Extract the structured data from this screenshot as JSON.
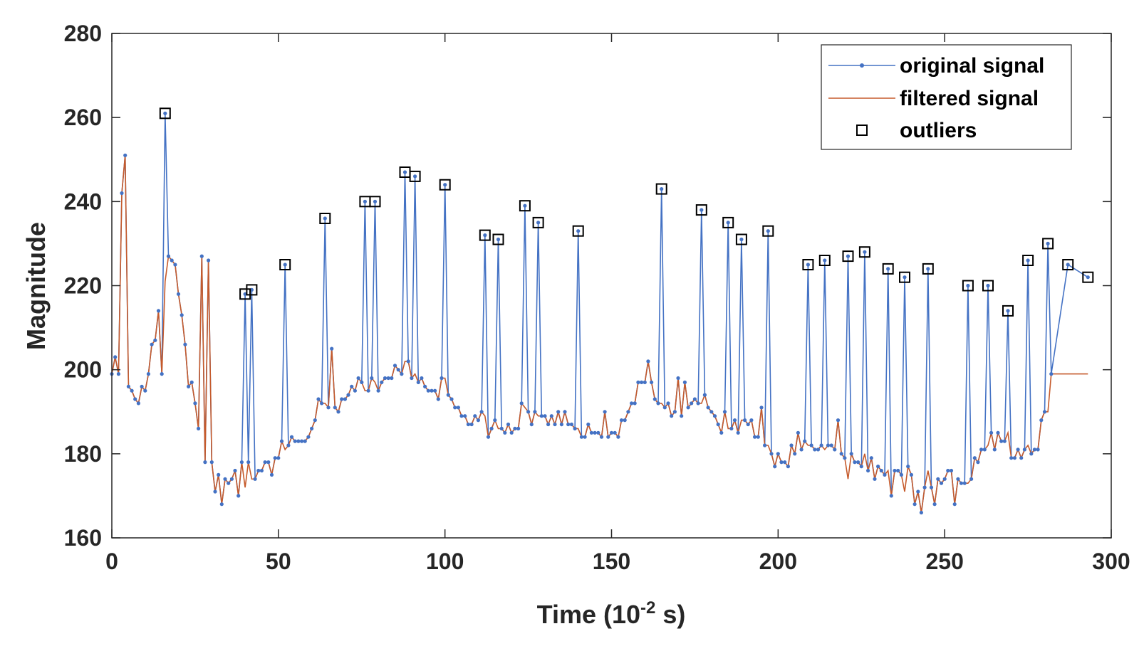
{
  "chart_data": {
    "type": "line",
    "xlabel_main": "Time (10",
    "xlabel_sup": "-2",
    "xlabel_tail": " s)",
    "ylabel": "Magnitude",
    "xlim": [
      0,
      300
    ],
    "ylim": [
      160,
      280
    ],
    "x_ticks": [
      "0",
      "50",
      "100",
      "150",
      "200",
      "250",
      "300"
    ],
    "y_ticks": [
      "160",
      "180",
      "200",
      "220",
      "240",
      "260",
      "280"
    ],
    "grid": false,
    "legend_position": "top-right",
    "legend": [
      "original signal",
      "filtered signal",
      "outliers"
    ],
    "colors": {
      "original": "#4472c4",
      "filtered": "#c55a2b",
      "outlier": "#000000",
      "axis": "#262626"
    },
    "baseline": [
      [
        0,
        199
      ],
      [
        1,
        203
      ],
      [
        2,
        199
      ],
      [
        3,
        242
      ],
      [
        4,
        251
      ],
      [
        5,
        196
      ],
      [
        6,
        195
      ],
      [
        7,
        193
      ],
      [
        8,
        192
      ],
      [
        9,
        196
      ],
      [
        10,
        195
      ],
      [
        11,
        199
      ],
      [
        12,
        206
      ],
      [
        13,
        207
      ],
      [
        14,
        214
      ],
      [
        15,
        199
      ],
      [
        16,
        221
      ],
      [
        17,
        227
      ],
      [
        18,
        226
      ],
      [
        19,
        225
      ],
      [
        20,
        218
      ],
      [
        21,
        213
      ],
      [
        22,
        206
      ],
      [
        23,
        196
      ],
      [
        24,
        197
      ],
      [
        25,
        192
      ],
      [
        26,
        186
      ],
      [
        27,
        227
      ],
      [
        28,
        178
      ],
      [
        29,
        226
      ],
      [
        30,
        178
      ],
      [
        31,
        171
      ],
      [
        32,
        175
      ],
      [
        33,
        168
      ],
      [
        34,
        174
      ],
      [
        35,
        173
      ],
      [
        36,
        174
      ],
      [
        37,
        176
      ],
      [
        38,
        170
      ],
      [
        39,
        178
      ],
      [
        40,
        172
      ],
      [
        41,
        178
      ],
      [
        42,
        174
      ],
      [
        43,
        174
      ],
      [
        44,
        176
      ],
      [
        45,
        176
      ],
      [
        46,
        178
      ],
      [
        47,
        178
      ],
      [
        48,
        175
      ],
      [
        49,
        179
      ],
      [
        50,
        179
      ],
      [
        51,
        183
      ],
      [
        52,
        181
      ],
      [
        53,
        182
      ],
      [
        54,
        184
      ],
      [
        55,
        183
      ],
      [
        56,
        183
      ],
      [
        57,
        183
      ],
      [
        58,
        183
      ],
      [
        59,
        184
      ],
      [
        60,
        186
      ],
      [
        61,
        188
      ],
      [
        62,
        193
      ],
      [
        63,
        192
      ],
      [
        64,
        192
      ],
      [
        65,
        191
      ],
      [
        66,
        205
      ],
      [
        67,
        191
      ],
      [
        68,
        190
      ],
      [
        69,
        193
      ],
      [
        70,
        193
      ],
      [
        71,
        194
      ],
      [
        72,
        196
      ],
      [
        73,
        195
      ],
      [
        74,
        198
      ],
      [
        75,
        197
      ],
      [
        76,
        195
      ],
      [
        77,
        195
      ],
      [
        78,
        198
      ],
      [
        79,
        197
      ],
      [
        80,
        195
      ],
      [
        81,
        197
      ],
      [
        82,
        198
      ],
      [
        83,
        198
      ],
      [
        84,
        198
      ],
      [
        85,
        201
      ],
      [
        86,
        200
      ],
      [
        87,
        199
      ],
      [
        88,
        202
      ],
      [
        89,
        202
      ],
      [
        90,
        198
      ],
      [
        91,
        199
      ],
      [
        92,
        197
      ],
      [
        93,
        198
      ],
      [
        94,
        196
      ],
      [
        95,
        195
      ],
      [
        96,
        195
      ],
      [
        97,
        195
      ],
      [
        98,
        193
      ],
      [
        99,
        198
      ],
      [
        100,
        198
      ],
      [
        101,
        194
      ],
      [
        102,
        193
      ],
      [
        103,
        191
      ],
      [
        104,
        191
      ],
      [
        105,
        189
      ],
      [
        106,
        189
      ],
      [
        107,
        187
      ],
      [
        108,
        187
      ],
      [
        109,
        189
      ],
      [
        110,
        188
      ],
      [
        111,
        190
      ],
      [
        112,
        189
      ],
      [
        113,
        184
      ],
      [
        114,
        186
      ],
      [
        115,
        188
      ],
      [
        116,
        186
      ],
      [
        117,
        186
      ],
      [
        118,
        185
      ],
      [
        119,
        187
      ],
      [
        120,
        185
      ],
      [
        121,
        186
      ],
      [
        122,
        186
      ],
      [
        123,
        192
      ],
      [
        124,
        191
      ],
      [
        125,
        190
      ],
      [
        126,
        187
      ],
      [
        127,
        190
      ],
      [
        128,
        189
      ],
      [
        129,
        189
      ],
      [
        130,
        189
      ],
      [
        131,
        187
      ],
      [
        132,
        189
      ],
      [
        133,
        187
      ],
      [
        134,
        190
      ],
      [
        135,
        187
      ],
      [
        136,
        190
      ],
      [
        137,
        187
      ],
      [
        138,
        187
      ],
      [
        139,
        186
      ],
      [
        140,
        186
      ],
      [
        141,
        184
      ],
      [
        142,
        184
      ],
      [
        143,
        187
      ],
      [
        144,
        185
      ],
      [
        145,
        185
      ],
      [
        146,
        185
      ],
      [
        147,
        184
      ],
      [
        148,
        190
      ],
      [
        149,
        184
      ],
      [
        150,
        185
      ],
      [
        151,
        185
      ],
      [
        152,
        184
      ],
      [
        153,
        188
      ],
      [
        154,
        188
      ],
      [
        155,
        190
      ],
      [
        156,
        192
      ],
      [
        157,
        192
      ],
      [
        158,
        197
      ],
      [
        159,
        197
      ],
      [
        160,
        197
      ],
      [
        161,
        202
      ],
      [
        162,
        197
      ],
      [
        163,
        193
      ],
      [
        164,
        192
      ],
      [
        165,
        192
      ],
      [
        166,
        191
      ],
      [
        167,
        192
      ],
      [
        168,
        189
      ],
      [
        169,
        190
      ],
      [
        170,
        198
      ],
      [
        171,
        189
      ],
      [
        172,
        197
      ],
      [
        173,
        191
      ],
      [
        174,
        192
      ],
      [
        175,
        193
      ],
      [
        176,
        192
      ],
      [
        177,
        192
      ],
      [
        178,
        194
      ],
      [
        179,
        191
      ],
      [
        180,
        190
      ],
      [
        181,
        189
      ],
      [
        182,
        187
      ],
      [
        183,
        185
      ],
      [
        184,
        190
      ],
      [
        185,
        186
      ],
      [
        186,
        186
      ],
      [
        187,
        188
      ],
      [
        188,
        185
      ],
      [
        189,
        188
      ],
      [
        190,
        188
      ],
      [
        191,
        187
      ],
      [
        192,
        188
      ],
      [
        193,
        184
      ],
      [
        194,
        184
      ],
      [
        195,
        191
      ],
      [
        196,
        182
      ],
      [
        197,
        182
      ],
      [
        198,
        180
      ],
      [
        199,
        177
      ],
      [
        200,
        180
      ],
      [
        201,
        178
      ],
      [
        202,
        178
      ],
      [
        203,
        177
      ],
      [
        204,
        182
      ],
      [
        205,
        180
      ],
      [
        206,
        185
      ],
      [
        207,
        181
      ],
      [
        208,
        183
      ],
      [
        209,
        182
      ],
      [
        210,
        182
      ],
      [
        211,
        181
      ],
      [
        212,
        181
      ],
      [
        213,
        182
      ],
      [
        214,
        181
      ],
      [
        215,
        182
      ],
      [
        216,
        182
      ],
      [
        217,
        181
      ],
      [
        218,
        188
      ],
      [
        219,
        180
      ],
      [
        220,
        179
      ],
      [
        221,
        174
      ],
      [
        222,
        180
      ],
      [
        223,
        178
      ],
      [
        224,
        178
      ],
      [
        225,
        177
      ],
      [
        226,
        180
      ],
      [
        227,
        176
      ],
      [
        228,
        179
      ],
      [
        229,
        174
      ],
      [
        230,
        177
      ],
      [
        231,
        176
      ],
      [
        232,
        175
      ],
      [
        233,
        176
      ],
      [
        234,
        170
      ],
      [
        235,
        176
      ],
      [
        236,
        176
      ],
      [
        237,
        175
      ],
      [
        238,
        171
      ],
      [
        239,
        177
      ],
      [
        240,
        175
      ],
      [
        241,
        168
      ],
      [
        242,
        171
      ],
      [
        243,
        166
      ],
      [
        244,
        172
      ],
      [
        245,
        176
      ],
      [
        246,
        172
      ],
      [
        247,
        168
      ],
      [
        248,
        174
      ],
      [
        249,
        173
      ],
      [
        250,
        174
      ],
      [
        251,
        176
      ],
      [
        252,
        176
      ],
      [
        253,
        168
      ],
      [
        254,
        174
      ],
      [
        255,
        173
      ],
      [
        256,
        173
      ],
      [
        257,
        173
      ],
      [
        258,
        174
      ],
      [
        259,
        179
      ],
      [
        260,
        178
      ],
      [
        261,
        181
      ],
      [
        262,
        181
      ],
      [
        263,
        182
      ],
      [
        264,
        185
      ],
      [
        265,
        181
      ],
      [
        266,
        185
      ],
      [
        267,
        183
      ],
      [
        268,
        183
      ],
      [
        269,
        185
      ],
      [
        270,
        179
      ],
      [
        271,
        179
      ],
      [
        272,
        181
      ],
      [
        273,
        179
      ],
      [
        274,
        181
      ],
      [
        275,
        182
      ],
      [
        276,
        180
      ],
      [
        277,
        181
      ],
      [
        278,
        181
      ],
      [
        279,
        188
      ],
      [
        280,
        190
      ],
      [
        281,
        190
      ],
      [
        282,
        199
      ]
    ],
    "outliers": [
      [
        16,
        261
      ],
      [
        40,
        218
      ],
      [
        42,
        219
      ],
      [
        52,
        225
      ],
      [
        64,
        236
      ],
      [
        76,
        240
      ],
      [
        79,
        240
      ],
      [
        88,
        247
      ],
      [
        91,
        246
      ],
      [
        100,
        244
      ],
      [
        112,
        232
      ],
      [
        116,
        231
      ],
      [
        124,
        239
      ],
      [
        128,
        235
      ],
      [
        140,
        233
      ],
      [
        165,
        243
      ],
      [
        177,
        238
      ],
      [
        185,
        235
      ],
      [
        189,
        231
      ],
      [
        197,
        233
      ],
      [
        209,
        225
      ],
      [
        214,
        226
      ],
      [
        221,
        227
      ],
      [
        226,
        228
      ],
      [
        233,
        224
      ],
      [
        238,
        222
      ],
      [
        245,
        224
      ],
      [
        257,
        220
      ],
      [
        263,
        220
      ],
      [
        269,
        214
      ],
      [
        275,
        226
      ],
      [
        281,
        230
      ],
      [
        287,
        225
      ],
      [
        293,
        222
      ]
    ]
  }
}
